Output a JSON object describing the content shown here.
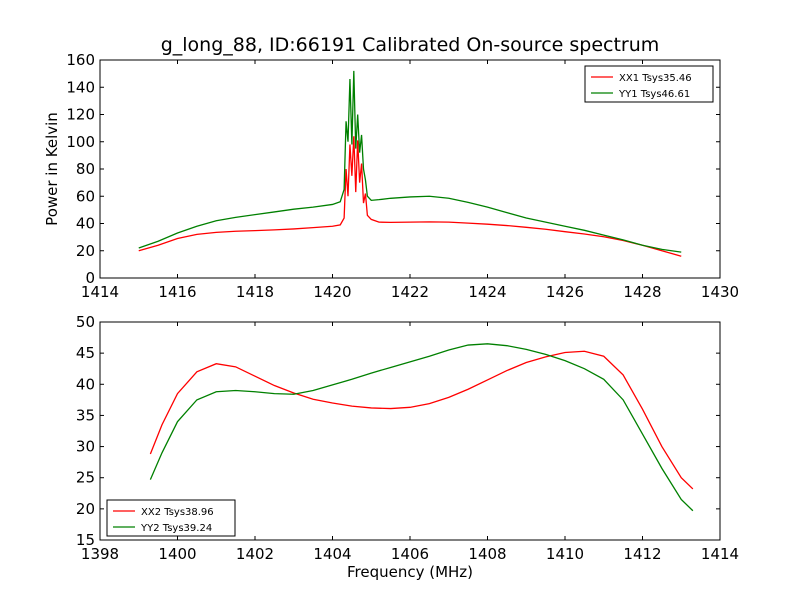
{
  "figure": {
    "title": "g_long_88, ID:66191 Calibrated On-source spectrum"
  },
  "chart_data": [
    {
      "type": "line",
      "title": "g_long_88, ID:66191 Calibrated On-source spectrum",
      "xlabel": "",
      "ylabel": "Power in Kelvin",
      "xlim": [
        1414,
        1430
      ],
      "ylim": [
        0,
        160
      ],
      "xticks": [
        1414,
        1416,
        1418,
        1420,
        1422,
        1424,
        1426,
        1428,
        1430
      ],
      "yticks": [
        0,
        20,
        40,
        60,
        80,
        100,
        120,
        140,
        160
      ],
      "legend_position": "top-right",
      "grid": false,
      "series": [
        {
          "name": "XX1 Tsys35.46",
          "color": "#ff0000",
          "x": [
            1415.0,
            1415.5,
            1416.0,
            1416.5,
            1417.0,
            1417.5,
            1418.0,
            1418.5,
            1419.0,
            1419.5,
            1420.0,
            1420.2,
            1420.3,
            1420.35,
            1420.4,
            1420.45,
            1420.5,
            1420.55,
            1420.6,
            1420.65,
            1420.7,
            1420.75,
            1420.8,
            1420.85,
            1420.9,
            1421.0,
            1421.2,
            1421.5,
            1422.0,
            1422.5,
            1423.0,
            1423.5,
            1424.0,
            1424.5,
            1425.0,
            1425.5,
            1426.0,
            1426.5,
            1427.0,
            1427.5,
            1428.0,
            1428.5,
            1429.0
          ],
          "y": [
            20,
            24,
            29,
            32,
            33.5,
            34.3,
            34.8,
            35.3,
            36,
            37,
            38,
            39,
            44,
            80,
            60,
            98,
            75,
            104,
            63,
            101,
            70,
            84,
            55,
            62,
            46,
            43,
            41,
            40.8,
            41,
            41.2,
            41,
            40.3,
            39.5,
            38.5,
            37.2,
            35.8,
            34,
            32.3,
            30.3,
            27.5,
            24,
            20,
            16
          ]
        },
        {
          "name": "YY1 Tsys46.61",
          "color": "#008000",
          "x": [
            1415.0,
            1415.5,
            1416.0,
            1416.5,
            1417.0,
            1417.5,
            1418.0,
            1418.5,
            1419.0,
            1419.5,
            1420.0,
            1420.2,
            1420.3,
            1420.35,
            1420.4,
            1420.45,
            1420.5,
            1420.55,
            1420.6,
            1420.65,
            1420.7,
            1420.75,
            1420.8,
            1420.85,
            1420.9,
            1421.0,
            1421.2,
            1421.5,
            1422.0,
            1422.5,
            1423.0,
            1423.5,
            1424.0,
            1424.5,
            1425.0,
            1425.5,
            1426.0,
            1426.5,
            1427.0,
            1427.5,
            1428.0,
            1428.5,
            1429.0
          ],
          "y": [
            22,
            27,
            33,
            38,
            42,
            44.5,
            46.5,
            48.5,
            50.5,
            52,
            54,
            56,
            65,
            115,
            100,
            146,
            98,
            152,
            95,
            120,
            92,
            105,
            80,
            72,
            60,
            57,
            57.5,
            58.5,
            59.5,
            60,
            58.5,
            55.5,
            52,
            48,
            44,
            41,
            38,
            35,
            31.5,
            28,
            24,
            21,
            19
          ]
        }
      ]
    },
    {
      "type": "line",
      "title": "",
      "xlabel": "Frequency (MHz)",
      "ylabel": "",
      "xlim": [
        1398,
        1414
      ],
      "ylim": [
        15,
        50
      ],
      "xticks": [
        1398,
        1400,
        1402,
        1404,
        1406,
        1408,
        1410,
        1412,
        1414
      ],
      "yticks": [
        15,
        20,
        25,
        30,
        35,
        40,
        45,
        50
      ],
      "legend_position": "bottom-left",
      "grid": false,
      "series": [
        {
          "name": "XX2 Tsys38.96",
          "color": "#ff0000",
          "x": [
            1399.3,
            1399.6,
            1400.0,
            1400.5,
            1401.0,
            1401.5,
            1402.0,
            1402.5,
            1403.0,
            1403.5,
            1404.0,
            1404.5,
            1405.0,
            1405.5,
            1406.0,
            1406.5,
            1407.0,
            1407.5,
            1408.0,
            1408.5,
            1409.0,
            1409.5,
            1410.0,
            1410.5,
            1411.0,
            1411.5,
            1412.0,
            1412.5,
            1413.0,
            1413.3
          ],
          "y": [
            28.8,
            33.5,
            38.5,
            42,
            43.3,
            42.8,
            41.3,
            39.8,
            38.6,
            37.6,
            37,
            36.5,
            36.2,
            36.1,
            36.3,
            36.9,
            37.9,
            39.2,
            40.7,
            42.2,
            43.5,
            44.4,
            45.1,
            45.3,
            44.5,
            41.5,
            36,
            30,
            25,
            23.2
          ]
        },
        {
          "name": "YY2 Tsys39.24",
          "color": "#008000",
          "x": [
            1399.3,
            1399.6,
            1400.0,
            1400.5,
            1401.0,
            1401.5,
            1402.0,
            1402.5,
            1403.0,
            1403.5,
            1404.0,
            1404.5,
            1405.0,
            1405.5,
            1406.0,
            1406.5,
            1407.0,
            1407.5,
            1408.0,
            1408.5,
            1409.0,
            1409.5,
            1410.0,
            1410.5,
            1411.0,
            1411.5,
            1412.0,
            1412.5,
            1413.0,
            1413.3
          ],
          "y": [
            24.7,
            29,
            34,
            37.5,
            38.8,
            39,
            38.8,
            38.5,
            38.4,
            39,
            39.9,
            40.8,
            41.8,
            42.7,
            43.6,
            44.5,
            45.5,
            46.3,
            46.5,
            46.2,
            45.6,
            44.8,
            43.8,
            42.5,
            40.8,
            37.5,
            32,
            26.5,
            21.5,
            19.7
          ]
        }
      ]
    }
  ]
}
